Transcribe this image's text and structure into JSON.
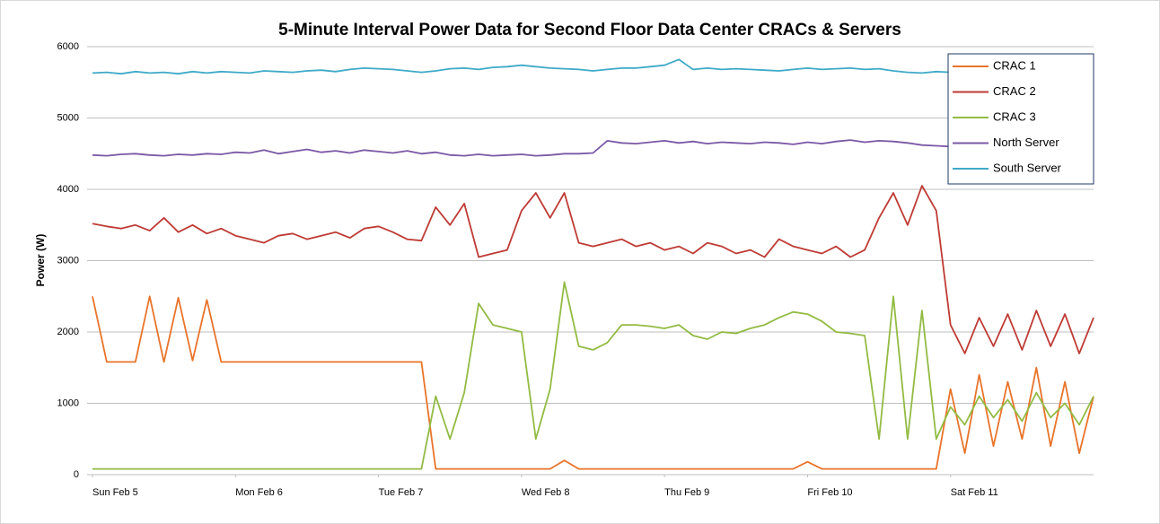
{
  "chart_data": {
    "type": "line",
    "title": "5-Minute Interval Power Data for Second Floor Data Center CRACs & Servers",
    "y_label": "Power (W)",
    "x": [
      0,
      0.1,
      0.2,
      0.3,
      0.4,
      0.5,
      0.6,
      0.7,
      0.8,
      0.9,
      1,
      1.1,
      1.2,
      1.3,
      1.4,
      1.5,
      1.6,
      1.7,
      1.8,
      1.9,
      2,
      2.1,
      2.2,
      2.3,
      2.4,
      2.5,
      2.6,
      2.7,
      2.8,
      2.9,
      3,
      3.1,
      3.2,
      3.3,
      3.4,
      3.5,
      3.6,
      3.7,
      3.8,
      3.9,
      4,
      4.1,
      4.2,
      4.3,
      4.4,
      4.5,
      4.6,
      4.7,
      4.8,
      4.9,
      5,
      5.1,
      5.2,
      5.3,
      5.4,
      5.5,
      5.6,
      5.7,
      5.8,
      5.9,
      6,
      6.1,
      6.2,
      6.3,
      6.4,
      6.5,
      6.6,
      6.7,
      6.8,
      6.9,
      7
    ],
    "xlim": [
      0,
      7
    ],
    "xticks": [
      {
        "value": 0,
        "label": "Sun Feb 5"
      },
      {
        "value": 1,
        "label": "Mon Feb 6"
      },
      {
        "value": 2,
        "label": "Tue Feb 7"
      },
      {
        "value": 3,
        "label": "Wed Feb 8"
      },
      {
        "value": 4,
        "label": "Thu Feb 9"
      },
      {
        "value": 5,
        "label": "Fri Feb 10"
      },
      {
        "value": 6,
        "label": "Sat Feb 11"
      }
    ],
    "ylim": [
      0,
      6000
    ],
    "yticks": [
      0,
      1000,
      2000,
      3000,
      4000,
      5000,
      6000
    ],
    "grid": true,
    "legend": "upper right",
    "series": [
      {
        "name": "CRAC 1",
        "color": "#e8742a",
        "values": [
          2500,
          1580,
          1580,
          1580,
          2500,
          1580,
          2480,
          1600,
          2450,
          1580,
          1580,
          1580,
          1580,
          1580,
          1580,
          1580,
          1580,
          1580,
          1580,
          1580,
          1580,
          1580,
          1580,
          1580,
          80,
          80,
          80,
          80,
          80,
          80,
          80,
          80,
          80,
          200,
          80,
          80,
          80,
          80,
          80,
          80,
          80,
          80,
          80,
          80,
          80,
          80,
          80,
          80,
          80,
          80,
          180,
          80,
          80,
          80,
          80,
          80,
          80,
          80,
          80,
          80,
          1200,
          300,
          1400,
          400,
          1300,
          500,
          1500,
          400,
          1300,
          300,
          1100
        ]
      },
      {
        "name": "CRAC 2",
        "color": "#be3b35",
        "values": [
          3520,
          3480,
          3450,
          3500,
          3420,
          3600,
          3400,
          3500,
          3380,
          3450,
          3350,
          3300,
          3250,
          3350,
          3380,
          3300,
          3350,
          3400,
          3320,
          3450,
          3480,
          3400,
          3300,
          3280,
          3750,
          3500,
          3800,
          3050,
          3100,
          3150,
          3700,
          3950,
          3600,
          3950,
          3250,
          3200,
          3250,
          3300,
          3200,
          3250,
          3150,
          3200,
          3100,
          3250,
          3200,
          3100,
          3150,
          3050,
          3300,
          3200,
          3150,
          3100,
          3200,
          3050,
          3150,
          3600,
          3950,
          3500,
          4050,
          3700,
          2100,
          1700,
          2200,
          1800,
          2250,
          1750,
          2300,
          1800,
          2250,
          1700,
          2200
        ]
      },
      {
        "name": "CRAC 3",
        "color": "#92bb43",
        "values": [
          80,
          80,
          80,
          80,
          80,
          80,
          80,
          80,
          80,
          80,
          80,
          80,
          80,
          80,
          80,
          80,
          80,
          80,
          80,
          80,
          80,
          80,
          80,
          80,
          1100,
          500,
          1150,
          2400,
          2100,
          2050,
          2000,
          500,
          1200,
          2700,
          1800,
          1750,
          1850,
          2100,
          2100,
          2080,
          2050,
          2100,
          1950,
          1900,
          2000,
          1980,
          2050,
          2100,
          2200,
          2280,
          2250,
          2150,
          2000,
          1980,
          1950,
          500,
          2500,
          500,
          2300,
          500,
          950,
          700,
          1100,
          800,
          1050,
          750,
          1150,
          800,
          1000,
          700,
          1100
        ]
      },
      {
        "name": "North Server",
        "color": "#7b58a6",
        "values": [
          4480,
          4470,
          4490,
          4500,
          4480,
          4470,
          4490,
          4480,
          4500,
          4490,
          4520,
          4510,
          4550,
          4500,
          4530,
          4560,
          4520,
          4540,
          4510,
          4550,
          4530,
          4510,
          4540,
          4500,
          4520,
          4480,
          4470,
          4490,
          4470,
          4480,
          4490,
          4470,
          4480,
          4500,
          4500,
          4510,
          4680,
          4650,
          4640,
          4660,
          4680,
          4650,
          4670,
          4640,
          4660,
          4650,
          4640,
          4660,
          4650,
          4630,
          4660,
          4640,
          4670,
          4690,
          4660,
          4680,
          4670,
          4650,
          4620,
          4610,
          4600,
          4600,
          4610,
          4600,
          4590,
          4600,
          4610,
          4600,
          4590,
          4600,
          4610
        ]
      },
      {
        "name": "South Server",
        "color": "#3eaac8",
        "values": [
          5630,
          5640,
          5620,
          5650,
          5630,
          5640,
          5620,
          5650,
          5630,
          5650,
          5640,
          5630,
          5660,
          5650,
          5640,
          5660,
          5670,
          5650,
          5680,
          5700,
          5690,
          5680,
          5660,
          5640,
          5660,
          5690,
          5700,
          5680,
          5710,
          5720,
          5740,
          5720,
          5700,
          5690,
          5680,
          5660,
          5680,
          5700,
          5700,
          5720,
          5740,
          5820,
          5680,
          5700,
          5680,
          5690,
          5680,
          5670,
          5660,
          5680,
          5700,
          5680,
          5690,
          5700,
          5680,
          5690,
          5660,
          5640,
          5630,
          5650,
          5640,
          5660,
          5640,
          5630,
          5650,
          5640,
          5630,
          5650,
          5640,
          5630,
          5650
        ]
      }
    ]
  }
}
